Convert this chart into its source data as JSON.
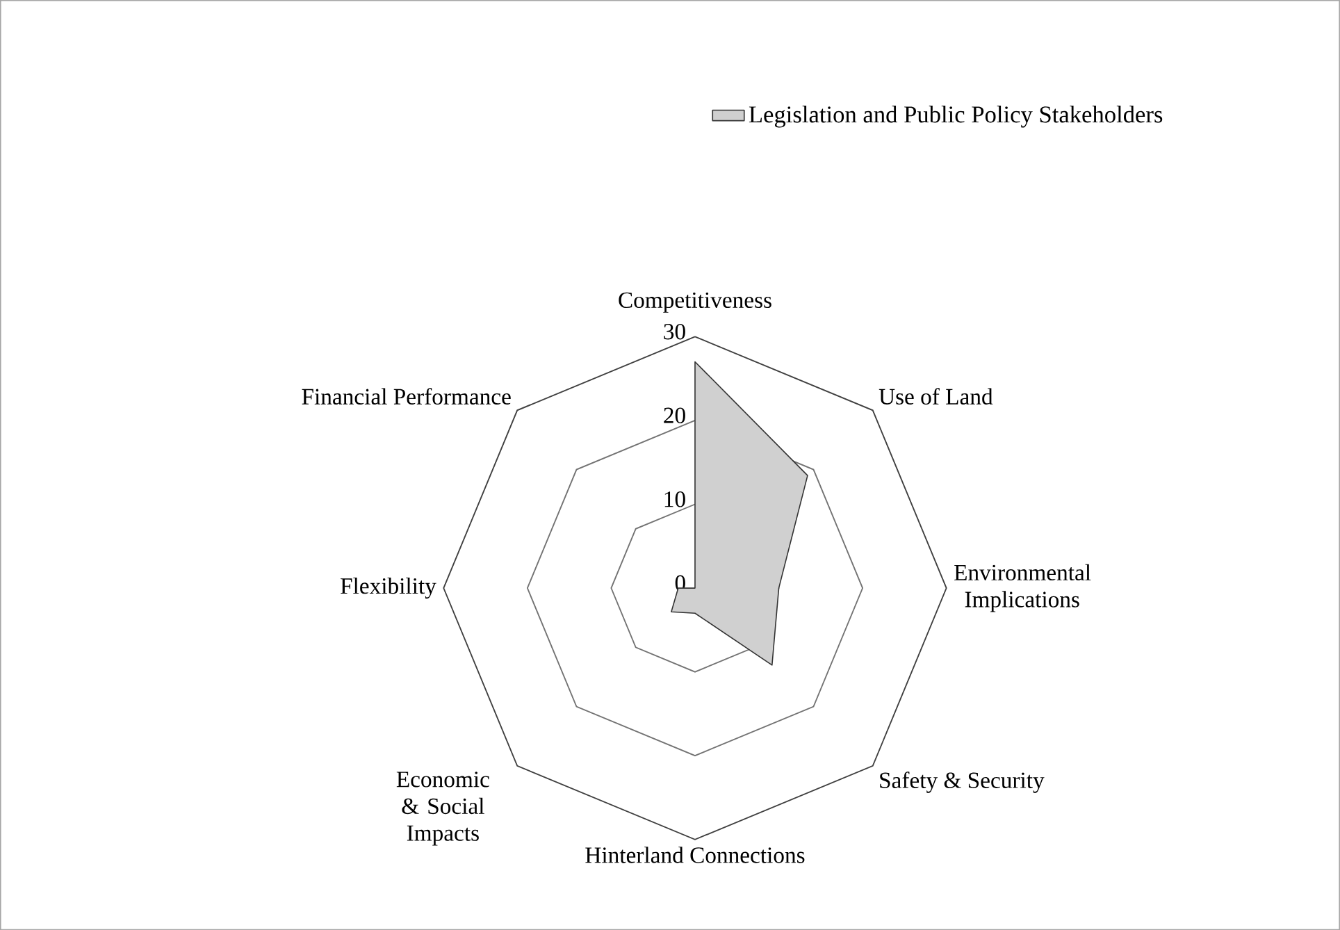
{
  "chart_data": {
    "type": "radar",
    "categories": [
      "Competitiveness",
      "Use of Land",
      "Environmental Implications",
      "Safety & Security",
      "Hinterland Connections",
      "Economic & Social Impacts",
      "Flexibility",
      "Financial Performance"
    ],
    "series": [
      {
        "name": "Legislation and Public Policy Stakeholders",
        "color": "#d0d0d0",
        "values": [
          27,
          19,
          10,
          13,
          3,
          4,
          2,
          0
        ]
      }
    ],
    "ylim": [
      0,
      30
    ],
    "yticks": [
      0,
      10,
      20,
      30
    ],
    "grid": true,
    "legend": "top right"
  }
}
